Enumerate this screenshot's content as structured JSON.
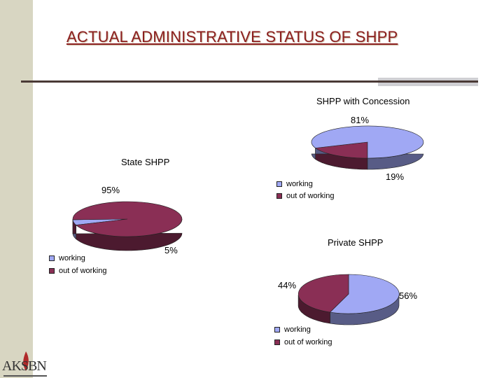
{
  "title": "ACTUAL ADMINISTRATIVE STATUS OF SHPP",
  "colors": {
    "working": "#a0a8f4",
    "out_of_working": "#8a2f55",
    "title": "#8b1e1e"
  },
  "logo_text": "AKSBN",
  "chart_data": [
    {
      "type": "pie",
      "title": "SHPP with Concession",
      "categories": [
        "working",
        "out of working"
      ],
      "values": [
        81,
        19
      ],
      "value_labels": [
        "81%",
        "19%"
      ],
      "legend": [
        "working",
        "out of working"
      ]
    },
    {
      "type": "pie",
      "title": "State SHPP",
      "categories": [
        "working",
        "out of working"
      ],
      "values": [
        5,
        95
      ],
      "value_labels": [
        "5%",
        "95%"
      ],
      "legend": [
        "working",
        "out of working"
      ]
    },
    {
      "type": "pie",
      "title": "Private SHPP",
      "categories": [
        "working",
        "out of working"
      ],
      "values": [
        56,
        44
      ],
      "value_labels": [
        "56%",
        "44%"
      ],
      "legend": [
        "working",
        "out of  working"
      ]
    }
  ]
}
